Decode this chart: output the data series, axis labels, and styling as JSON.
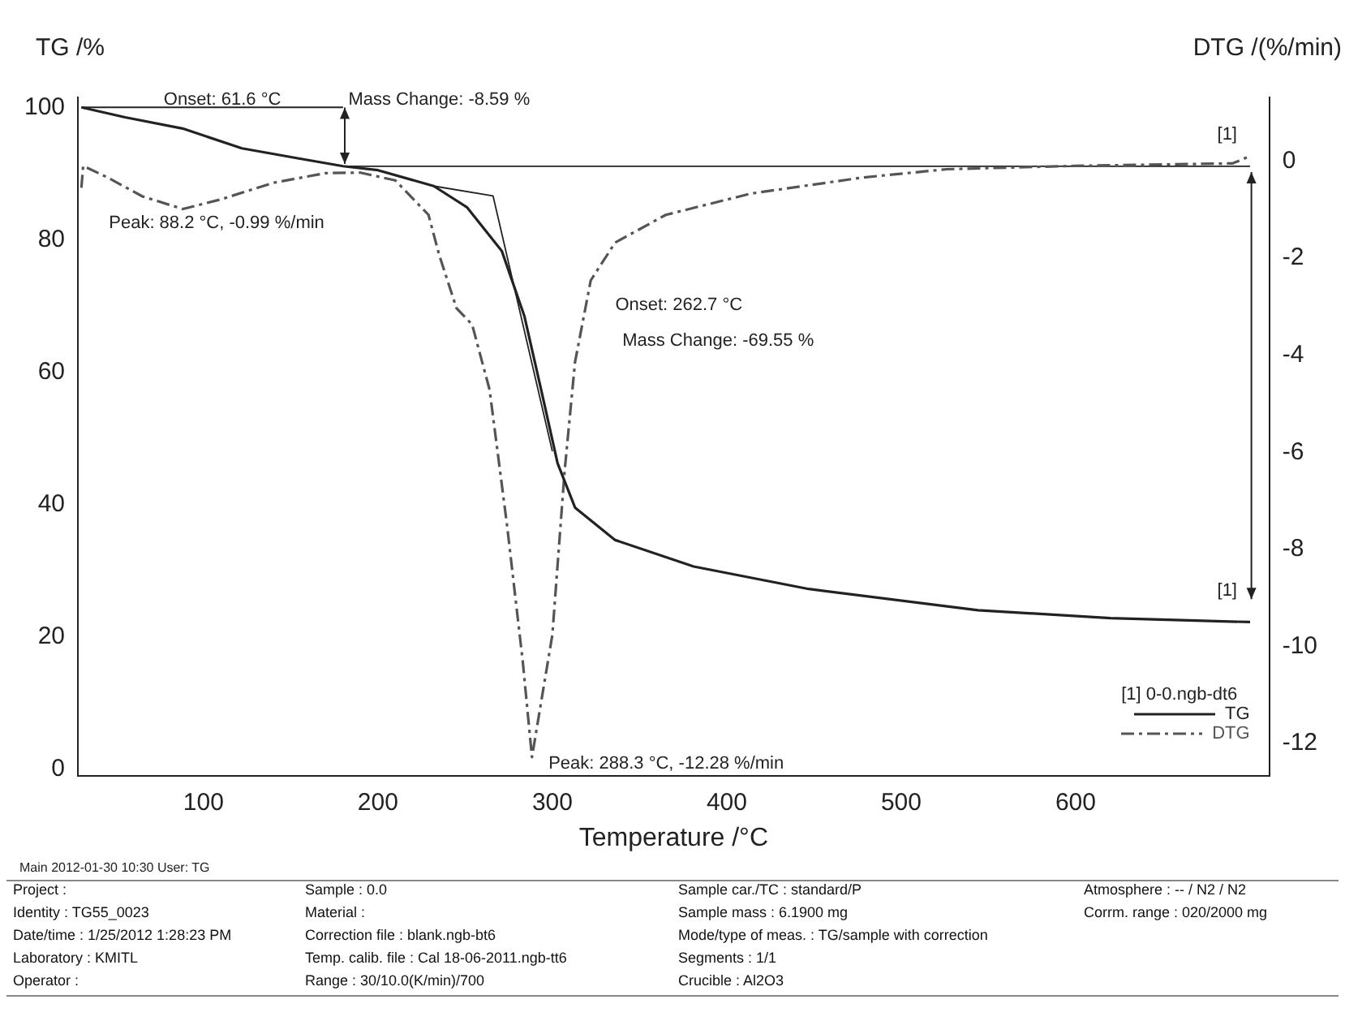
{
  "chart_data": {
    "type": "line",
    "xlabel": "Temperature /°C",
    "ylabel": "TG /%",
    "y2label": "DTG /(%/min)",
    "legend_title": "[1] 0-0.ngb-dt6",
    "legend": "bottom right",
    "grid": false,
    "marker": "none",
    "xlim": [
      28,
      711
    ],
    "xticks": [
      100,
      200,
      300,
      400,
      500,
      600
    ],
    "ylim": [
      -1,
      101.5
    ],
    "yticks": [
      0,
      20,
      40,
      60,
      80,
      100
    ],
    "y2lim": [
      -12.66,
      1.31
    ],
    "y2ticks": [
      0,
      -2,
      -4,
      -6,
      -8,
      -10,
      -12
    ],
    "series": [
      {
        "name": "TG",
        "color": "#222222",
        "line_style": "solid",
        "x": [
          30,
          55,
          88,
          122,
          154,
          180,
          200,
          232,
          251,
          271,
          284,
          294,
          303,
          313,
          336,
          381,
          447,
          544,
          620,
          700
        ],
        "values": [
          100,
          98.5,
          96.8,
          93.8,
          92.3,
          91.1,
          90.5,
          88.1,
          84.9,
          78.3,
          68.4,
          56.8,
          46.2,
          39.5,
          34.6,
          30.6,
          27.2,
          24.0,
          22.8,
          22.2
        ]
      },
      {
        "name": "DTG",
        "color": "#555555",
        "line_style": "dashed",
        "axis": "y2",
        "x": [
          30,
          31,
          45,
          65,
          88.2,
          110,
          140,
          170,
          190,
          210,
          229,
          235,
          245,
          254,
          264,
          274,
          283,
          288.3,
          300,
          307,
          313,
          322,
          336,
          365,
          414,
          478,
          526,
          600,
          690,
          700
        ],
        "values": [
          -0.55,
          -0.1,
          -0.34,
          -0.73,
          -0.99,
          -0.79,
          -0.45,
          -0.25,
          -0.24,
          -0.4,
          -1.11,
          -1.92,
          -3.03,
          -3.37,
          -4.71,
          -7.5,
          -10.3,
          -12.28,
          -9.76,
          -6.4,
          -4.14,
          -2.46,
          -1.68,
          -1.11,
          -0.67,
          -0.34,
          -0.17,
          -0.1,
          -0.05,
          0.1
        ]
      },
      {
        "color": "#222222",
        "line_style": "solid",
        "x": [
          30,
          180
        ],
        "values": [
          100,
          100
        ]
      },
      {
        "color": "#222222",
        "line_style": "solid",
        "x": [
          180,
          700
        ],
        "values": [
          91.1,
          91.1
        ]
      },
      {
        "color": "#222222",
        "line_style": "solid",
        "x": [
          232,
          266,
          300
        ],
        "values": [
          88.1,
          86.6,
          48
        ]
      }
    ],
    "annotations": [
      "Onset: 61.6 °C",
      "Mass Change: -8.59 %",
      "Peak: 88.2 °C, -0.99 %/min",
      "Onset: 262.7 °C",
      "Mass Change: -69.55 %",
      "Peak: 288.3 °C, -12.28 %/min",
      {
        "text": "[1]",
        "x": 700,
        "y": 91.1
      },
      {
        "text": "[1]",
        "x": 700,
        "y": 22.2
      },
      "Main  2012-01-30 10:30  User: TG",
      "Project :",
      "Identity :  TG55_0023",
      "Date/time :  1/25/2012 1:28:23 PM",
      "Laboratory :  KMITL",
      "Operator :",
      "Sample :  0.0",
      "Material :",
      "Correction file :  blank.ngb-bt6",
      "Temp. calib. file :  Cal 18-06-2011.ngb-tt6",
      "Range :  30/10.0(K/min)/700",
      "Sample car./TC :  standard/P",
      "Sample mass :  6.1900 mg",
      "Mode/type of meas. :  TG/sample with correction",
      "Segments :  1/1",
      "Crucible :  Al2O3",
      "Atmosphere :  -- / N2 / N2",
      "Corrm. range :  020/2000 mg"
    ]
  }
}
